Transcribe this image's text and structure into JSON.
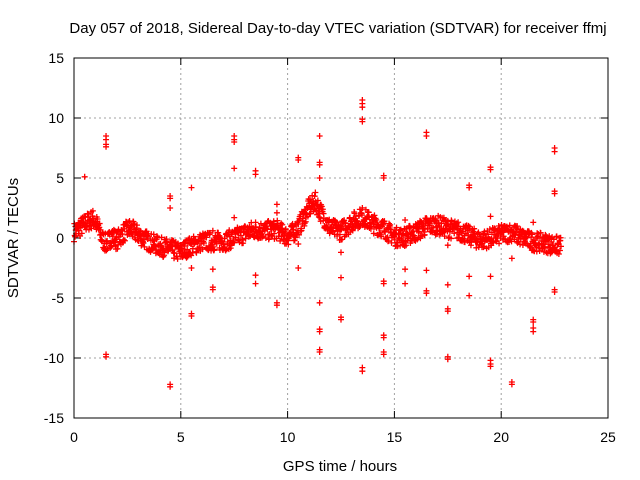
{
  "chart_data": {
    "type": "scatter",
    "title": "Day 057 of 2018, Sidereal Day-to-day VTEC variation (SDTVAR) for receiver ffmj",
    "xlabel": "GPS time / hours",
    "ylabel": "SDTVAR / TECUs",
    "xlim": [
      0,
      25
    ],
    "ylim": [
      -15,
      15
    ],
    "xticks": [
      "0",
      "5",
      "10",
      "15",
      "20",
      "25"
    ],
    "yticks": [
      "-15",
      "-10",
      "-5",
      "0",
      "5",
      "10",
      "15"
    ],
    "grid": true,
    "marker": "+",
    "series": [
      {
        "name": "SDTVAR",
        "color": "#ff0000",
        "band": [
          [
            0.0,
            0.5
          ],
          [
            0.3,
            0.9
          ],
          [
            0.6,
            1.3
          ],
          [
            0.9,
            1.6
          ],
          [
            1.1,
            1.0
          ],
          [
            1.3,
            0.0
          ],
          [
            1.5,
            -0.5
          ],
          [
            1.8,
            0.2
          ],
          [
            2.0,
            -0.2
          ],
          [
            2.3,
            0.4
          ],
          [
            2.6,
            0.8
          ],
          [
            3.0,
            0.3
          ],
          [
            3.5,
            -0.3
          ],
          [
            4.0,
            -0.7
          ],
          [
            4.5,
            -0.9
          ],
          [
            5.0,
            -1.2
          ],
          [
            5.3,
            -0.8
          ],
          [
            5.6,
            -0.6
          ],
          [
            6.0,
            -0.3
          ],
          [
            6.5,
            -0.3
          ],
          [
            7.0,
            -0.3
          ],
          [
            7.5,
            0.0
          ],
          [
            8.0,
            0.4
          ],
          [
            8.5,
            0.7
          ],
          [
            9.0,
            0.6
          ],
          [
            9.5,
            0.7
          ],
          [
            10.0,
            0.1
          ],
          [
            10.3,
            0.5
          ],
          [
            10.6,
            1.2
          ],
          [
            11.0,
            2.5
          ],
          [
            11.3,
            3.0
          ],
          [
            11.6,
            2.0
          ],
          [
            12.0,
            0.8
          ],
          [
            12.5,
            0.6
          ],
          [
            13.0,
            1.3
          ],
          [
            13.5,
            1.8
          ],
          [
            14.0,
            1.2
          ],
          [
            14.5,
            0.8
          ],
          [
            15.0,
            0.1
          ],
          [
            15.5,
            0.1
          ],
          [
            16.0,
            0.5
          ],
          [
            16.5,
            1.0
          ],
          [
            17.0,
            1.1
          ],
          [
            17.5,
            0.8
          ],
          [
            18.0,
            0.6
          ],
          [
            18.5,
            0.2
          ],
          [
            19.0,
            -0.2
          ],
          [
            19.5,
            0.0
          ],
          [
            20.0,
            0.3
          ],
          [
            20.5,
            0.5
          ],
          [
            21.0,
            0.0
          ],
          [
            21.5,
            -0.3
          ],
          [
            22.0,
            -0.4
          ],
          [
            22.5,
            -0.6
          ],
          [
            22.8,
            -0.7
          ]
        ],
        "outliers": [
          [
            0.5,
            5.1
          ],
          [
            1.5,
            8.5
          ],
          [
            1.5,
            8.2
          ],
          [
            1.5,
            7.8
          ],
          [
            1.5,
            7.6
          ],
          [
            1.5,
            -9.7
          ],
          [
            1.5,
            -9.9
          ],
          [
            4.5,
            3.5
          ],
          [
            4.5,
            3.3
          ],
          [
            4.5,
            2.5
          ],
          [
            4.5,
            -12.2
          ],
          [
            4.5,
            -12.4
          ],
          [
            5.5,
            4.2
          ],
          [
            5.5,
            -2.5
          ],
          [
            5.5,
            -6.3
          ],
          [
            5.5,
            -6.5
          ],
          [
            6.5,
            0.6
          ],
          [
            6.5,
            -2.6
          ],
          [
            6.5,
            -4.1
          ],
          [
            6.5,
            -4.3
          ],
          [
            7.5,
            8.5
          ],
          [
            7.5,
            8.2
          ],
          [
            7.5,
            8.0
          ],
          [
            7.5,
            5.8
          ],
          [
            7.5,
            1.7
          ],
          [
            8.5,
            5.6
          ],
          [
            8.5,
            5.3
          ],
          [
            8.5,
            -3.1
          ],
          [
            8.5,
            -3.8
          ],
          [
            9.5,
            2.8
          ],
          [
            9.5,
            2.1
          ],
          [
            9.5,
            -5.4
          ],
          [
            9.5,
            -5.6
          ],
          [
            10.5,
            6.7
          ],
          [
            10.5,
            6.5
          ],
          [
            10.5,
            -0.5
          ],
          [
            10.5,
            -2.5
          ],
          [
            11.5,
            8.5
          ],
          [
            11.5,
            6.3
          ],
          [
            11.5,
            6.1
          ],
          [
            11.5,
            5.0
          ],
          [
            11.5,
            -5.4
          ],
          [
            11.5,
            -7.6
          ],
          [
            11.5,
            -7.8
          ],
          [
            11.5,
            -9.3
          ],
          [
            11.5,
            -9.5
          ],
          [
            12.5,
            -1.2
          ],
          [
            12.5,
            -3.3
          ],
          [
            12.5,
            -6.6
          ],
          [
            12.5,
            -6.8
          ],
          [
            13.5,
            11.5
          ],
          [
            13.5,
            11.2
          ],
          [
            13.5,
            10.9
          ],
          [
            13.5,
            9.9
          ],
          [
            13.5,
            9.7
          ],
          [
            13.5,
            -10.8
          ],
          [
            13.5,
            -11.1
          ],
          [
            14.5,
            5.2
          ],
          [
            14.5,
            5.0
          ],
          [
            14.5,
            -3.6
          ],
          [
            14.5,
            -3.8
          ],
          [
            14.5,
            -8.1
          ],
          [
            14.5,
            -8.3
          ],
          [
            14.5,
            -9.5
          ],
          [
            14.5,
            -9.7
          ],
          [
            15.5,
            1.5
          ],
          [
            15.5,
            -2.6
          ],
          [
            15.5,
            -3.8
          ],
          [
            16.5,
            8.8
          ],
          [
            16.5,
            8.5
          ],
          [
            16.5,
            -2.7
          ],
          [
            16.5,
            -4.4
          ],
          [
            16.5,
            -4.6
          ],
          [
            17.5,
            -0.6
          ],
          [
            17.5,
            -3.9
          ],
          [
            17.5,
            -5.9
          ],
          [
            17.5,
            -6.1
          ],
          [
            17.5,
            -9.9
          ],
          [
            17.5,
            -10.1
          ],
          [
            18.5,
            4.4
          ],
          [
            18.5,
            4.2
          ],
          [
            18.5,
            -3.2
          ],
          [
            18.5,
            -4.8
          ],
          [
            19.5,
            5.9
          ],
          [
            19.5,
            5.7
          ],
          [
            19.5,
            1.8
          ],
          [
            19.5,
            -3.2
          ],
          [
            19.5,
            -10.2
          ],
          [
            19.5,
            -10.5
          ],
          [
            19.5,
            -10.7
          ],
          [
            20.5,
            -1.7
          ],
          [
            20.5,
            -12.0
          ],
          [
            20.5,
            -12.2
          ],
          [
            21.5,
            1.3
          ],
          [
            21.5,
            -6.8
          ],
          [
            21.5,
            -7.0
          ],
          [
            21.5,
            -7.5
          ],
          [
            21.5,
            -7.8
          ],
          [
            22.5,
            7.5
          ],
          [
            22.5,
            7.2
          ],
          [
            22.5,
            3.9
          ],
          [
            22.5,
            3.7
          ],
          [
            22.5,
            -4.3
          ],
          [
            22.5,
            -4.5
          ]
        ]
      }
    ]
  }
}
